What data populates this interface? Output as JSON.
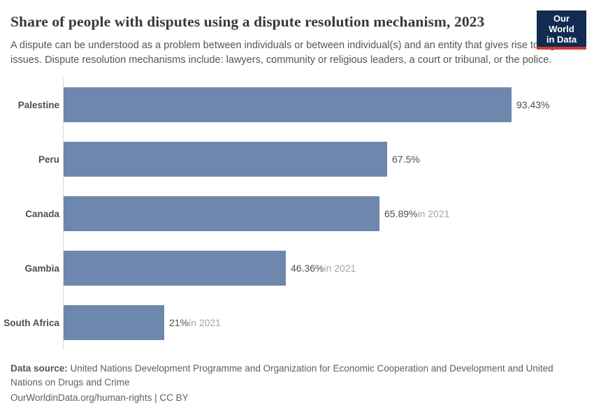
{
  "header": {
    "title": "Share of people with disputes using a dispute resolution mechanism, 2023",
    "subtitle": "A dispute can be understood as a problem between individuals or between individual(s) and an entity that gives rise to legal issues. Dispute resolution mechanisms include: lawyers, community or religious leaders, a court or tribunal, or the police.",
    "logo": {
      "line1": "Our World",
      "line2": "in Data",
      "background_color": "#112b51",
      "accent_color": "#d13b32"
    }
  },
  "chart_data": {
    "type": "bar",
    "orientation": "horizontal",
    "title": "Share of people with disputes using a dispute resolution mechanism, 2023",
    "categories": [
      "Palestine",
      "Peru",
      "Canada",
      "Gambia",
      "South Africa"
    ],
    "values": [
      93.43,
      67.5,
      65.89,
      46.36,
      21
    ],
    "value_labels": [
      "93.43%",
      "67.5%",
      "65.89%",
      "46.36%",
      "21%"
    ],
    "value_suffixes": [
      "",
      "",
      "in 2021",
      "in 2021",
      "in 2021"
    ],
    "bar_color": "#6e87ad",
    "axis_line_color": "#dcdcdc",
    "xlabel": "",
    "ylabel": "",
    "xlim": [
      0,
      100
    ],
    "grid": false,
    "legend": false
  },
  "footer": {
    "source_label": "Data source:",
    "source_text": " United Nations Development Programme and Organization for Economic Cooperation and Development and United Nations on Drugs and Crime",
    "link_line": "OurWorldinData.org/human-rights | CC BY"
  }
}
